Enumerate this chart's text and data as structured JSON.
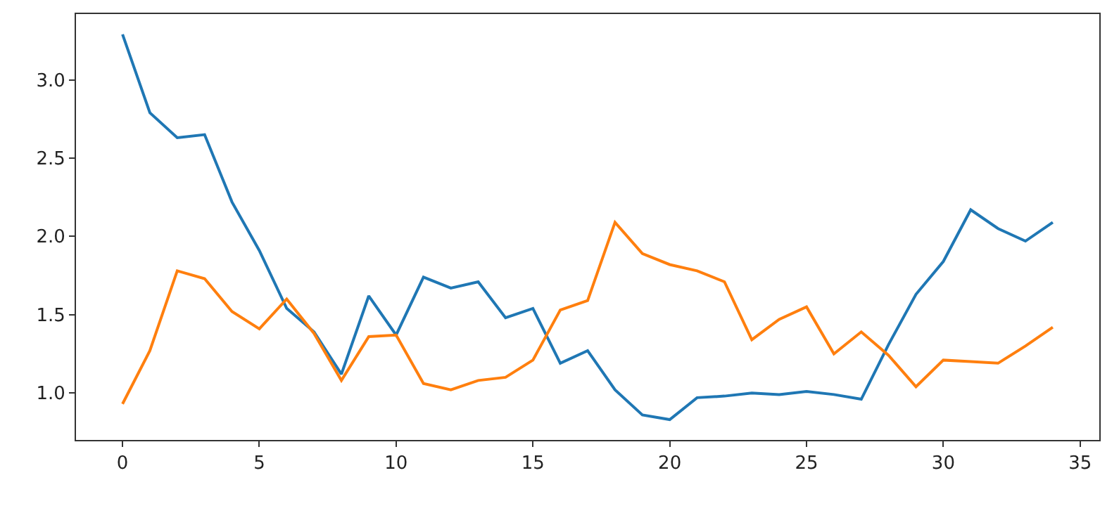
{
  "chart_data": {
    "type": "line",
    "x": [
      0,
      1,
      2,
      3,
      4,
      5,
      6,
      7,
      8,
      9,
      10,
      11,
      12,
      13,
      14,
      15,
      16,
      17,
      18,
      19,
      20,
      21,
      22,
      23,
      24,
      25,
      26,
      27,
      28,
      29,
      30,
      31,
      32,
      33,
      34
    ],
    "series": [
      {
        "color": "#1f77b4",
        "values": [
          3.29,
          2.79,
          2.63,
          2.65,
          2.22,
          1.91,
          1.54,
          1.39,
          1.12,
          1.62,
          1.37,
          1.74,
          1.67,
          1.71,
          1.48,
          1.54,
          1.19,
          1.27,
          1.02,
          0.86,
          0.83,
          0.97,
          0.98,
          1.0,
          0.99,
          1.01,
          0.99,
          0.96,
          1.31,
          1.63,
          1.84,
          2.17,
          2.05,
          1.97,
          2.09
        ]
      },
      {
        "color": "#ff7f0e",
        "values": [
          0.93,
          1.27,
          1.78,
          1.73,
          1.52,
          1.41,
          1.6,
          1.38,
          1.08,
          1.36,
          1.37,
          1.06,
          1.02,
          1.08,
          1.1,
          1.21,
          1.53,
          1.59,
          2.09,
          1.89,
          1.82,
          1.78,
          1.71,
          1.34,
          1.47,
          1.55,
          1.25,
          1.39,
          1.24,
          1.04,
          1.21,
          1.2,
          1.19,
          1.3,
          1.42
        ]
      }
    ],
    "xlim": [
      -1.7,
      35.7
    ],
    "xticks": [
      0,
      5,
      10,
      15,
      20,
      25,
      30,
      35
    ],
    "ylim": [
      0.7,
      3.42
    ],
    "yticks": [
      {
        "value": 1,
        "label": "1.0"
      },
      {
        "value": 1.5,
        "label": "1.5"
      },
      {
        "value": 2,
        "label": "2.0"
      },
      {
        "value": 2.5,
        "label": "2.5"
      },
      {
        "value": 3,
        "label": "3.0"
      }
    ],
    "marker": "none",
    "line_style": "solid"
  }
}
